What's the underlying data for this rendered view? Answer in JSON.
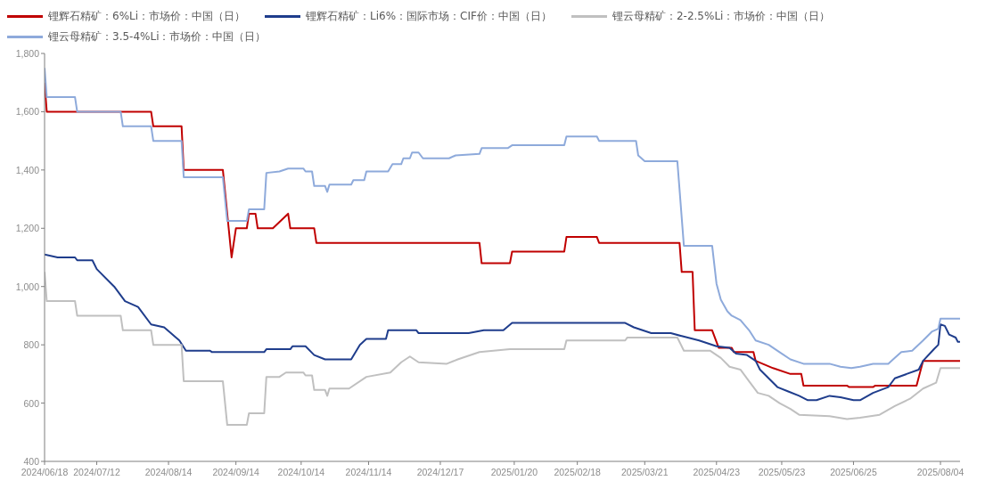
{
  "chart_data": {
    "type": "line",
    "legend": "top left",
    "line_style": "solid",
    "marker": "none",
    "grid": false,
    "xlim": [
      "2024-06-18",
      "2025-08-13"
    ],
    "xticks": [
      {
        "value": "2024-06-18",
        "label": "2024/06/18"
      },
      {
        "value": "2024-07-12",
        "label": "2024/07/12"
      },
      {
        "value": "2024-08-14",
        "label": "2024/08/14"
      },
      {
        "value": "2024-09-14",
        "label": "2024/09/14"
      },
      {
        "value": "2024-10-14",
        "label": "2024/10/14"
      },
      {
        "value": "2024-11-14",
        "label": "2024/11/14"
      },
      {
        "value": "2024-12-17",
        "label": "2024/12/17"
      },
      {
        "value": "2025-01-20",
        "label": "2025/01/20"
      },
      {
        "value": "2025-02-18",
        "label": "2025/02/18"
      },
      {
        "value": "2025-03-21",
        "label": "2025/03/21"
      },
      {
        "value": "2025-04-23",
        "label": "2025/04/23"
      },
      {
        "value": "2025-05-23",
        "label": "2025/05/23"
      },
      {
        "value": "2025-06-25",
        "label": "2025/06/25"
      },
      {
        "value": "2025-08-04",
        "label": "2025/08/04"
      }
    ],
    "ylim": [
      400,
      1800
    ],
    "yticks": [
      400,
      600,
      800,
      {
        "value": 1000,
        "label": "1,000"
      },
      {
        "value": 1200,
        "label": "1,200"
      },
      {
        "value": 1400,
        "label": "1,400"
      },
      {
        "value": 1600,
        "label": "1,600"
      },
      {
        "value": 1800,
        "label": "1,800"
      }
    ],
    "series": [
      {
        "name": "锂辉石精矿：6%Li：市场价：中国（日）",
        "color": "#c00000",
        "x": [
          "2024-06-18",
          "2024-06-19",
          "2024-08-06",
          "2024-08-07",
          "2024-08-20",
          "2024-08-21",
          "2024-09-08",
          "2024-09-12",
          "2024-09-14",
          "2024-09-19",
          "2024-09-20",
          "2024-09-23",
          "2024-09-24",
          "2024-10-01",
          "2024-10-08",
          "2024-10-09",
          "2024-10-20",
          "2024-10-21",
          "2025-01-04",
          "2025-01-05",
          "2025-01-18",
          "2025-01-19",
          "2025-02-12",
          "2025-02-13",
          "2025-02-27",
          "2025-02-28",
          "2025-04-06",
          "2025-04-07",
          "2025-04-12",
          "2025-04-13",
          "2025-04-21",
          "2025-04-24",
          "2025-04-30",
          "2025-05-01",
          "2025-05-10",
          "2025-05-11",
          "2025-05-19",
          "2025-05-27",
          "2025-06-01",
          "2025-06-02",
          "2025-06-22",
          "2025-06-23",
          "2025-07-04",
          "2025-07-05",
          "2025-07-24",
          "2025-07-27",
          "2025-08-13"
        ],
        "values": [
          1700,
          1600,
          1600,
          1550,
          1550,
          1400,
          1400,
          1100,
          1200,
          1200,
          1250,
          1250,
          1200,
          1200,
          1250,
          1200,
          1200,
          1150,
          1150,
          1080,
          1080,
          1120,
          1120,
          1170,
          1170,
          1150,
          1150,
          1050,
          1050,
          850,
          850,
          790,
          790,
          775,
          775,
          745,
          720,
          700,
          700,
          660,
          660,
          655,
          655,
          660,
          660,
          745,
          745
        ]
      },
      {
        "name": "锂辉石精矿：Li6%：国际市场：CIF价：中国（日）",
        "color": "#1f3d8c",
        "x": [
          "2024-06-18",
          "2024-06-24",
          "2024-07-02",
          "2024-07-03",
          "2024-07-10",
          "2024-07-12",
          "2024-07-20",
          "2024-07-25",
          "2024-07-31",
          "2024-08-06",
          "2024-08-12",
          "2024-08-19",
          "2024-08-22",
          "2024-09-02",
          "2024-09-03",
          "2024-09-27",
          "2024-09-28",
          "2024-10-09",
          "2024-10-10",
          "2024-10-16",
          "2024-10-20",
          "2024-10-25",
          "2024-11-06",
          "2024-11-10",
          "2024-11-13",
          "2024-11-22",
          "2024-11-23",
          "2024-12-06",
          "2024-12-07",
          "2024-12-30",
          "2025-01-06",
          "2025-01-15",
          "2025-01-19",
          "2025-03-12",
          "2025-03-16",
          "2025-03-24",
          "2025-04-02",
          "2025-04-07",
          "2025-04-15",
          "2025-04-23",
          "2025-04-29",
          "2025-05-02",
          "2025-05-07",
          "2025-05-11",
          "2025-05-13",
          "2025-05-21",
          "2025-05-26",
          "2025-05-31",
          "2025-06-04",
          "2025-06-08",
          "2025-06-14",
          "2025-06-19",
          "2025-06-25",
          "2025-06-28",
          "2025-07-04",
          "2025-07-11",
          "2025-07-14",
          "2025-07-25",
          "2025-07-27",
          "2025-08-01",
          "2025-08-03",
          "2025-08-04",
          "2025-08-06",
          "2025-08-08",
          "2025-08-11",
          "2025-08-12",
          "2025-08-13"
        ],
        "values": [
          1110,
          1100,
          1100,
          1090,
          1090,
          1060,
          1000,
          950,
          930,
          870,
          860,
          815,
          780,
          780,
          775,
          775,
          785,
          785,
          795,
          795,
          765,
          750,
          750,
          800,
          820,
          820,
          850,
          850,
          840,
          840,
          850,
          850,
          875,
          875,
          860,
          840,
          840,
          830,
          815,
          795,
          790,
          770,
          765,
          745,
          715,
          655,
          640,
          625,
          610,
          610,
          625,
          620,
          610,
          610,
          635,
          655,
          685,
          715,
          745,
          785,
          800,
          870,
          865,
          835,
          825,
          810,
          810
        ]
      },
      {
        "name": "锂云母精矿：2-2.5%Li：市场价：中国（日）",
        "color": "#c0c0c0",
        "x": [
          "2024-06-18",
          "2024-06-19",
          "2024-07-02",
          "2024-07-03",
          "2024-07-23",
          "2024-07-24",
          "2024-08-06",
          "2024-08-07",
          "2024-08-20",
          "2024-08-21",
          "2024-09-08",
          "2024-09-10",
          "2024-09-19",
          "2024-09-20",
          "2024-09-27",
          "2024-09-28",
          "2024-10-04",
          "2024-10-07",
          "2024-10-15",
          "2024-10-16",
          "2024-10-19",
          "2024-10-20",
          "2024-10-25",
          "2024-10-26",
          "2024-10-27",
          "2024-11-05",
          "2024-11-13",
          "2024-11-24",
          "2024-11-29",
          "2024-12-03",
          "2024-12-07",
          "2024-12-20",
          "2024-12-25",
          "2025-01-04",
          "2025-01-18",
          "2025-02-12",
          "2025-02-13",
          "2025-03-12",
          "2025-03-13",
          "2025-04-05",
          "2025-04-08",
          "2025-04-20",
          "2025-04-25",
          "2025-04-29",
          "2025-05-04",
          "2025-05-08",
          "2025-05-12",
          "2025-05-17",
          "2025-05-22",
          "2025-05-27",
          "2025-05-31",
          "2025-06-14",
          "2025-06-22",
          "2025-06-28",
          "2025-07-07",
          "2025-07-14",
          "2025-07-21",
          "2025-07-27",
          "2025-08-02",
          "2025-08-04",
          "2025-08-13"
        ],
        "values": [
          1050,
          950,
          950,
          900,
          900,
          850,
          850,
          800,
          800,
          675,
          675,
          525,
          525,
          565,
          565,
          690,
          690,
          705,
          705,
          695,
          695,
          645,
          645,
          625,
          650,
          650,
          690,
          705,
          740,
          760,
          740,
          735,
          750,
          775,
          785,
          785,
          815,
          815,
          825,
          825,
          780,
          780,
          755,
          725,
          715,
          675,
          635,
          625,
          600,
          580,
          560,
          555,
          545,
          550,
          560,
          590,
          615,
          650,
          670,
          720,
          720
        ]
      },
      {
        "name": "锂云母精矿：3.5-4%Li：市场价：中国（日）",
        "color": "#8eaadb",
        "x": [
          "2024-06-18",
          "2024-06-19",
          "2024-07-02",
          "2024-07-03",
          "2024-07-23",
          "2024-07-24",
          "2024-08-06",
          "2024-08-07",
          "2024-08-20",
          "2024-08-21",
          "2024-09-08",
          "2024-09-10",
          "2024-09-19",
          "2024-09-20",
          "2024-09-27",
          "2024-09-28",
          "2024-10-04",
          "2024-10-08",
          "2024-10-15",
          "2024-10-16",
          "2024-10-19",
          "2024-10-20",
          "2024-10-25",
          "2024-10-26",
          "2024-10-27",
          "2024-11-06",
          "2024-11-07",
          "2024-11-12",
          "2024-11-13",
          "2024-11-23",
          "2024-11-25",
          "2024-11-29",
          "2024-11-30",
          "2024-12-03",
          "2024-12-04",
          "2024-12-07",
          "2024-12-09",
          "2024-12-21",
          "2024-12-24",
          "2025-01-04",
          "2025-01-05",
          "2025-01-17",
          "2025-01-19",
          "2025-02-12",
          "2025-02-13",
          "2025-02-27",
          "2025-02-28",
          "2025-03-17",
          "2025-03-18",
          "2025-03-21",
          "2025-04-05",
          "2025-04-08",
          "2025-04-21",
          "2025-04-23",
          "2025-04-25",
          "2025-04-28",
          "2025-04-30",
          "2025-05-04",
          "2025-05-08",
          "2025-05-11",
          "2025-05-17",
          "2025-05-22",
          "2025-05-27",
          "2025-06-02",
          "2025-06-14",
          "2025-06-19",
          "2025-06-24",
          "2025-06-28",
          "2025-07-04",
          "2025-07-11",
          "2025-07-14",
          "2025-07-17",
          "2025-07-22",
          "2025-07-27",
          "2025-07-31",
          "2025-08-03",
          "2025-08-04",
          "2025-08-13"
        ],
        "values": [
          1750,
          1650,
          1650,
          1600,
          1600,
          1550,
          1550,
          1500,
          1500,
          1375,
          1375,
          1225,
          1225,
          1265,
          1265,
          1390,
          1395,
          1405,
          1405,
          1395,
          1395,
          1345,
          1345,
          1325,
          1350,
          1350,
          1365,
          1365,
          1395,
          1395,
          1420,
          1420,
          1440,
          1440,
          1460,
          1460,
          1440,
          1440,
          1450,
          1455,
          1475,
          1475,
          1485,
          1485,
          1515,
          1515,
          1500,
          1500,
          1450,
          1430,
          1430,
          1140,
          1140,
          1010,
          955,
          915,
          900,
          885,
          850,
          815,
          800,
          775,
          750,
          735,
          735,
          725,
          720,
          725,
          735,
          735,
          755,
          775,
          780,
          815,
          845,
          855,
          890,
          890
        ]
      }
    ]
  }
}
